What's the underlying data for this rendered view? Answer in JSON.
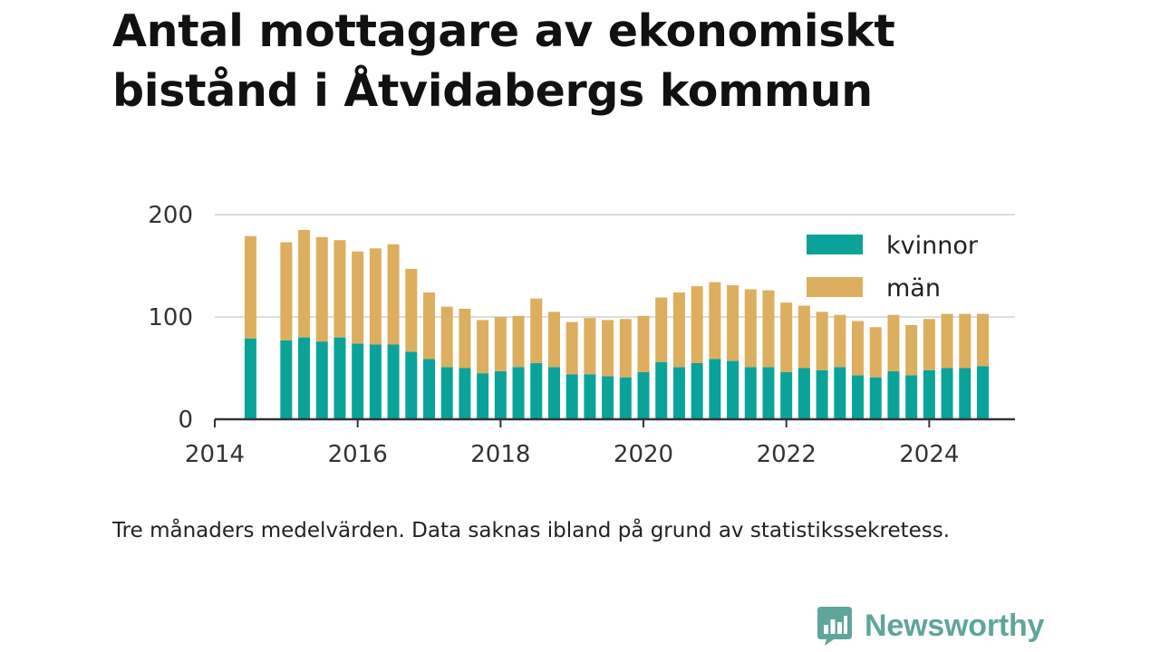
{
  "title": "Antal mottagare av ekonomiskt bistånd i Åtvidabergs kommun",
  "caption": "Tre månaders medelvärden. Data saknas ibland på grund av statistikssekretess.",
  "brand": {
    "name": "Newsworthy",
    "icon": "newsworthy-chart-logo-icon",
    "color": "#5fa59b"
  },
  "colors": {
    "kvinnor": "#0aa39a",
    "man": "#dcae5e",
    "grid": "#dddddd",
    "axis": "#333333"
  },
  "chart_data": {
    "type": "bar",
    "stacked": true,
    "x_unit": "quarter",
    "x": [
      "2014-Q2",
      "2014-Q4",
      "2015-Q1",
      "2015-Q2",
      "2015-Q3",
      "2015-Q4",
      "2016-Q1",
      "2016-Q2",
      "2016-Q3",
      "2016-Q4",
      "2017-Q1",
      "2017-Q2",
      "2017-Q3",
      "2017-Q4",
      "2018-Q1",
      "2018-Q2",
      "2018-Q3",
      "2018-Q4",
      "2019-Q1",
      "2019-Q2",
      "2019-Q3",
      "2019-Q4",
      "2020-Q1",
      "2020-Q2",
      "2020-Q3",
      "2020-Q4",
      "2021-Q1",
      "2021-Q2",
      "2021-Q3",
      "2021-Q4",
      "2022-Q1",
      "2022-Q2",
      "2022-Q3",
      "2022-Q4",
      "2023-Q1",
      "2023-Q2",
      "2023-Q3",
      "2023-Q4",
      "2024-Q1",
      "2024-Q2",
      "2024-Q3"
    ],
    "series": [
      {
        "name": "kvinnor",
        "values": [
          79,
          77,
          80,
          76,
          80,
          74,
          73,
          73,
          66,
          59,
          51,
          50,
          45,
          47,
          51,
          55,
          51,
          44,
          44,
          42,
          41,
          46,
          56,
          51,
          55,
          59,
          57,
          51,
          51,
          46,
          50,
          48,
          51,
          43,
          41,
          47,
          43,
          48,
          50,
          50,
          52
        ]
      },
      {
        "name": "män",
        "values": [
          100,
          96,
          105,
          102,
          95,
          90,
          94,
          98,
          81,
          65,
          59,
          58,
          52,
          53,
          50,
          63,
          54,
          51,
          55,
          55,
          57,
          55,
          63,
          73,
          75,
          75,
          74,
          76,
          75,
          68,
          61,
          57,
          51,
          53,
          49,
          55,
          49,
          50,
          53,
          53,
          51
        ]
      }
    ],
    "xlim": [
      "2014-01-01",
      "2025-03-15"
    ],
    "ylim": [
      0,
      200
    ],
    "y_ticks": [
      "0",
      "100",
      "200"
    ],
    "x_ticks": [
      "2014",
      "2016",
      "2018",
      "2020",
      "2022",
      "2024"
    ],
    "grid": true,
    "legend": "top-right"
  }
}
